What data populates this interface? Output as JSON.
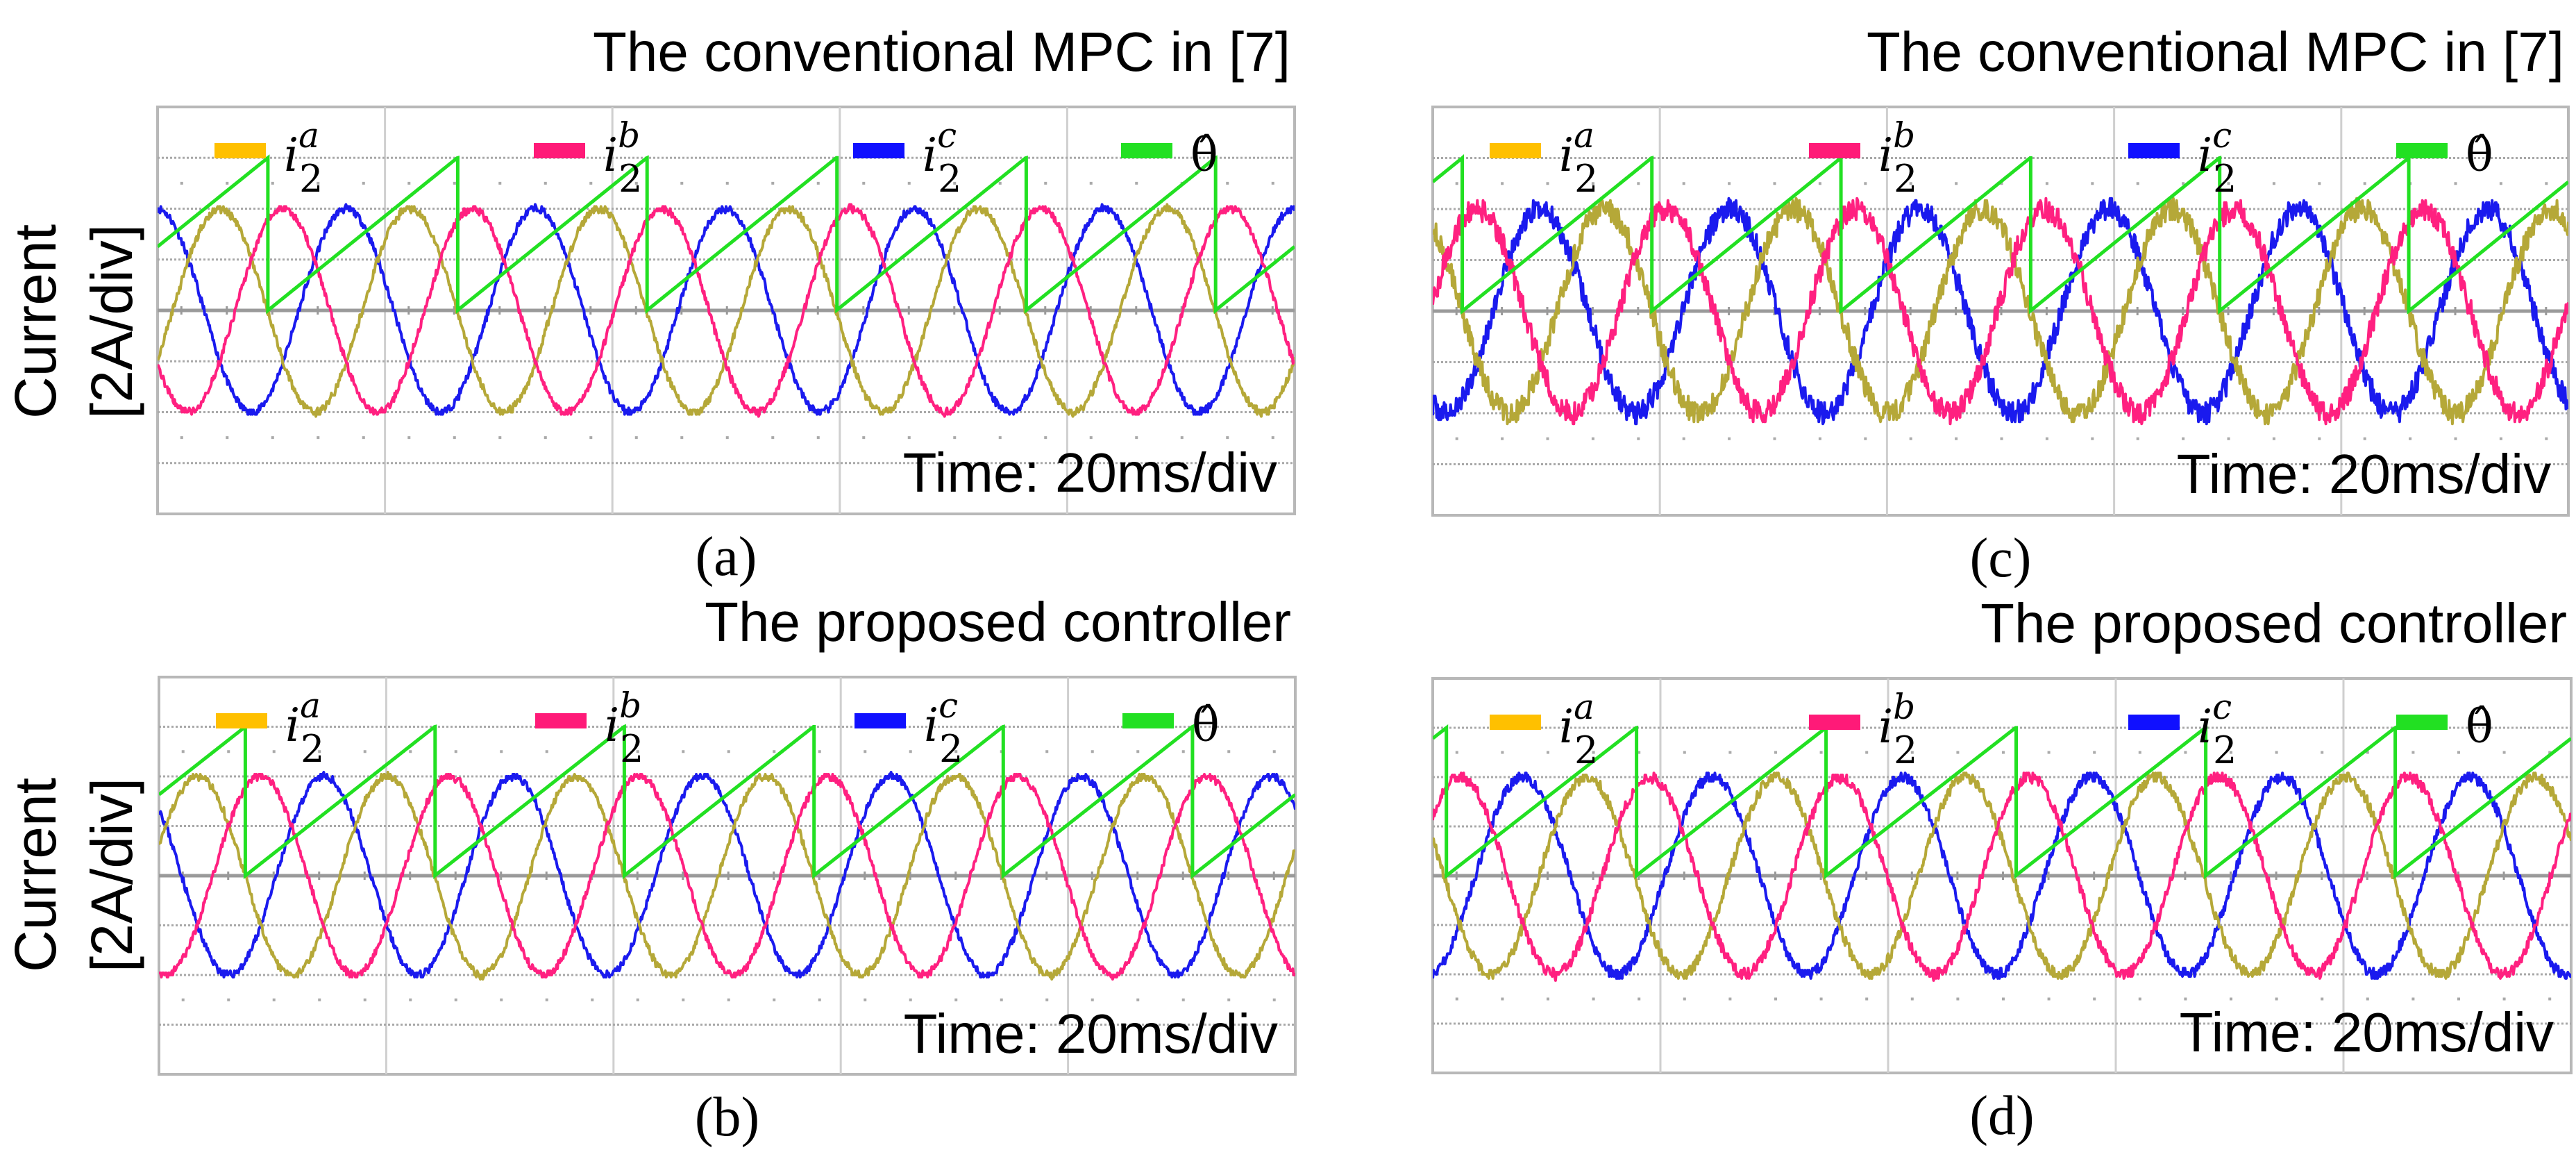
{
  "y_axis_label": [
    "Current",
    "[2A/div]"
  ],
  "legend": [
    {
      "base": "i",
      "sub": "2",
      "sup": "a",
      "color": "#ffc000",
      "trace_color": "#b5a838"
    },
    {
      "base": "i",
      "sub": "2",
      "sup": "b",
      "color": "#ff1a78",
      "trace_color": "#ff2080"
    },
    {
      "base": "i",
      "sub": "2",
      "sup": "c",
      "color": "#1010ff",
      "trace_color": "#1a1aee"
    },
    {
      "base": "θ̂",
      "sub": "",
      "sup": "",
      "color": "#22e022",
      "trace_color": "#22e022"
    }
  ],
  "chart_data": [
    {
      "panel": "a",
      "caption": "(a)",
      "title": "The conventional MPC in [7]",
      "type": "line",
      "time_scale": "Time: 20ms/div",
      "ylabel": "Current [2A/div]",
      "xlim_ms": [
        0,
        100
      ],
      "ylim_A": [
        -8,
        8
      ],
      "grid": true,
      "legend_placement": "top",
      "series": [
        {
          "name": "i2a",
          "amplitude_A": 4,
          "frequency_Hz": 60,
          "peak_time_ms": 5.5
        },
        {
          "name": "i2b",
          "amplitude_A": 4,
          "frequency_Hz": 60,
          "peak_time_ms": 11.0
        },
        {
          "name": "i2c",
          "amplitude_A": 4,
          "frequency_Hz": 60,
          "peak_time_ms": 16.6
        },
        {
          "name": "θ̂",
          "range_rad": [
            0,
            6.283
          ],
          "frequency_Hz": 60,
          "reset_times_ms": [
            9.7,
            26.4,
            43.0,
            59.7,
            76.4,
            93.0
          ]
        }
      ]
    },
    {
      "panel": "b",
      "caption": "(b)",
      "title": "The proposed controller",
      "type": "line",
      "time_scale": "Time: 20ms/div",
      "ylabel": "Current [2A/div]",
      "xlim_ms": [
        0,
        100
      ],
      "ylim_A": [
        -8,
        8
      ],
      "grid": true,
      "legend_placement": "top",
      "series": [
        {
          "name": "i2a",
          "amplitude_A": 4,
          "frequency_Hz": 60,
          "peak_time_ms": 3.4
        },
        {
          "name": "i2b",
          "amplitude_A": 4,
          "frequency_Hz": 60,
          "peak_time_ms": 8.9
        },
        {
          "name": "i2c",
          "amplitude_A": 4,
          "frequency_Hz": 60,
          "peak_time_ms": 14.5
        },
        {
          "name": "θ̂",
          "range_rad": [
            0,
            6.283
          ],
          "frequency_Hz": 60,
          "reset_times_ms": [
            7.6,
            24.2,
            40.9,
            57.6,
            74.2,
            90.9
          ]
        }
      ]
    },
    {
      "panel": "c",
      "caption": "(c)",
      "title": "The conventional MPC in [7]",
      "type": "line",
      "time_scale": "Time: 20ms/div",
      "xlim_ms": [
        0,
        100
      ],
      "ylim_A": [
        -8,
        8
      ],
      "grid": true,
      "legend_placement": "top",
      "series": [
        {
          "name": "i2a",
          "amplitude_A": 4,
          "frequency_Hz": 60,
          "peak_time_ms": 15.1
        },
        {
          "name": "i2b",
          "amplitude_A": 4,
          "frequency_Hz": 60,
          "peak_time_ms": 3.9
        },
        {
          "name": "i2c",
          "amplitude_A": 4,
          "frequency_Hz": 60,
          "peak_time_ms": 9.5
        },
        {
          "name": "θ̂",
          "range_rad": [
            0,
            6.283
          ],
          "frequency_Hz": 60,
          "reset_times_ms": [
            2.6,
            19.2,
            35.9,
            52.6,
            69.2,
            85.9
          ]
        }
      ]
    },
    {
      "panel": "d",
      "caption": "(d)",
      "title": "The proposed controller",
      "type": "line",
      "time_scale": "Time: 20ms/div",
      "xlim_ms": [
        0,
        100
      ],
      "ylim_A": [
        -8,
        8
      ],
      "grid": true,
      "legend_placement": "top",
      "series": [
        {
          "name": "i2a",
          "amplitude_A": 4,
          "frequency_Hz": 60,
          "peak_time_ms": 13.5
        },
        {
          "name": "i2b",
          "amplitude_A": 4,
          "frequency_Hz": 60,
          "peak_time_ms": 2.4
        },
        {
          "name": "i2c",
          "amplitude_A": 4,
          "frequency_Hz": 60,
          "peak_time_ms": 7.9
        },
        {
          "name": "θ̂",
          "range_rad": [
            0,
            6.283
          ],
          "frequency_Hz": 60,
          "reset_times_ms": [
            1.2,
            17.8,
            34.5,
            51.2,
            67.8,
            84.5
          ]
        }
      ]
    }
  ]
}
